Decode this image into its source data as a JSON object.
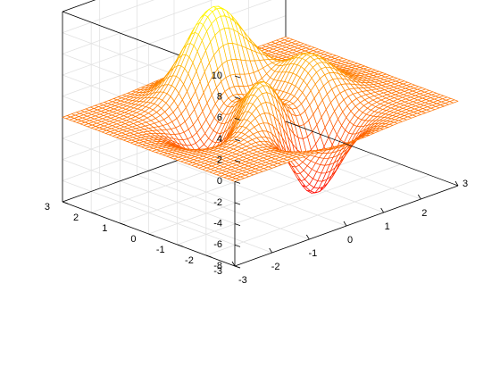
{
  "chart_data": {
    "type": "surface",
    "title": "",
    "xlabel": "",
    "ylabel": "",
    "zlabel": "",
    "function": "peaks",
    "x_range": [
      -3,
      3
    ],
    "y_range": [
      -3,
      3
    ],
    "z_range": [
      -8,
      10
    ],
    "grid": "on",
    "grid_resolution": 49,
    "colormap": "autumn",
    "colormap_colors": [
      "#ff0000",
      "#ffff00"
    ],
    "z_ticks": [
      -8,
      -6,
      -4,
      -2,
      0,
      2,
      4,
      6,
      8,
      10
    ],
    "x_ticks": [
      -3,
      -2,
      -1,
      0,
      1,
      2,
      3
    ],
    "y_ticks": [
      -3,
      -2,
      -1,
      0,
      1,
      2,
      3
    ],
    "z_tick_labels": [
      "-8",
      "-6",
      "-4",
      "-2",
      "0",
      "2",
      "4",
      "6",
      "8",
      "10"
    ],
    "x_tick_labels": [
      "-3",
      "-2",
      "-1",
      "0",
      "1",
      "2",
      "3"
    ],
    "y_tick_labels": [
      "-3",
      "-2",
      "-1",
      "0",
      "1",
      "2",
      "3"
    ]
  }
}
